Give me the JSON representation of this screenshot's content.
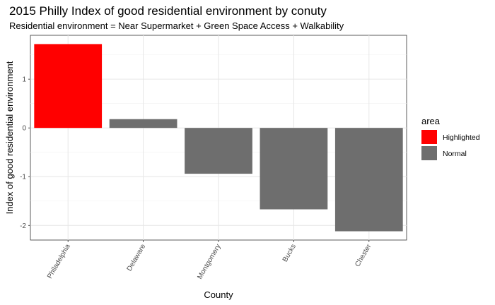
{
  "chart_data": {
    "type": "bar",
    "title": "2015 Philly Index of good residential environment by conuty",
    "subtitle": "Residential environment = Near Supermarket + Green Space Access + Walkability",
    "xlabel": "County",
    "ylabel": "Index of good residential environment",
    "categories": [
      "Philadelphia",
      "Delaware",
      "Montgomery",
      "Bucks",
      "Chester"
    ],
    "values": [
      1.72,
      0.18,
      -0.94,
      -1.67,
      -2.12
    ],
    "area": [
      "Highlighted",
      "Normal",
      "Normal",
      "Normal",
      "Normal"
    ],
    "ylim": [
      -2.3,
      1.9
    ],
    "yticks": [
      -2,
      -1,
      0,
      1
    ],
    "yticklabels": [
      "-2",
      "-1",
      "0",
      "1"
    ],
    "grid": true,
    "legend": {
      "title": "area",
      "position": "right",
      "entries": [
        {
          "label": "Highlighted",
          "color": "#ff0000"
        },
        {
          "label": "Normal",
          "color": "#6e6e6e"
        }
      ]
    }
  }
}
